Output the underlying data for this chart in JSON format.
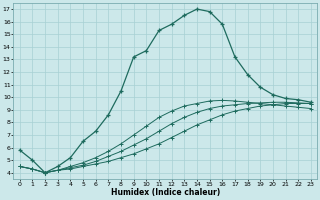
{
  "xlabel": "Humidex (Indice chaleur)",
  "bg_color": "#cce8ea",
  "line_color": "#1e6b5e",
  "grid_color": "#a8d0d4",
  "ylim": [
    3.5,
    17.5
  ],
  "xlim": [
    -0.5,
    23.5
  ],
  "yticks": [
    4,
    5,
    6,
    7,
    8,
    9,
    10,
    11,
    12,
    13,
    14,
    15,
    16,
    17
  ],
  "xticks": [
    0,
    1,
    2,
    3,
    4,
    5,
    6,
    7,
    8,
    9,
    10,
    11,
    12,
    13,
    14,
    15,
    16,
    17,
    18,
    19,
    20,
    21,
    22,
    23
  ],
  "curve1_x": [
    0,
    1,
    2,
    3,
    4,
    5,
    6,
    7,
    8,
    9,
    10,
    11,
    12,
    13,
    14,
    15,
    16,
    17,
    18,
    19,
    20,
    21,
    22,
    23
  ],
  "curve1_y": [
    5.8,
    5.0,
    4.0,
    4.5,
    5.2,
    6.5,
    7.3,
    8.6,
    10.5,
    13.2,
    13.7,
    15.3,
    15.8,
    16.5,
    17.0,
    16.8,
    15.8,
    13.2,
    11.8,
    10.8,
    10.2,
    9.9,
    9.8,
    9.6
  ],
  "curve2_x": [
    0,
    1,
    2,
    3,
    4,
    5,
    6,
    7,
    8,
    9,
    10,
    11,
    12,
    13,
    14,
    15,
    16,
    17,
    18,
    19,
    20,
    21,
    22,
    23
  ],
  "curve2_y": [
    4.5,
    4.3,
    4.0,
    4.2,
    4.3,
    4.5,
    4.7,
    4.9,
    5.2,
    5.5,
    5.9,
    6.3,
    6.8,
    7.3,
    7.8,
    8.2,
    8.6,
    8.9,
    9.1,
    9.3,
    9.4,
    9.5,
    9.5,
    9.5
  ],
  "curve3_x": [
    0,
    1,
    2,
    3,
    4,
    5,
    6,
    7,
    8,
    9,
    10,
    11,
    12,
    13,
    14,
    15,
    16,
    17,
    18,
    19,
    20,
    21,
    22,
    23
  ],
  "curve3_y": [
    4.5,
    4.3,
    4.0,
    4.2,
    4.4,
    4.6,
    4.9,
    5.3,
    5.7,
    6.2,
    6.7,
    7.3,
    7.9,
    8.4,
    8.8,
    9.1,
    9.3,
    9.4,
    9.5,
    9.55,
    9.6,
    9.6,
    9.55,
    9.5
  ],
  "curve4_x": [
    0,
    1,
    2,
    3,
    4,
    5,
    6,
    7,
    8,
    9,
    10,
    11,
    12,
    13,
    14,
    15,
    16,
    17,
    18,
    19,
    20,
    21,
    22,
    23
  ],
  "curve4_y": [
    4.5,
    4.3,
    4.0,
    4.2,
    4.5,
    4.8,
    5.2,
    5.7,
    6.3,
    7.0,
    7.7,
    8.4,
    8.9,
    9.3,
    9.5,
    9.7,
    9.75,
    9.7,
    9.6,
    9.5,
    9.4,
    9.3,
    9.2,
    9.1
  ]
}
